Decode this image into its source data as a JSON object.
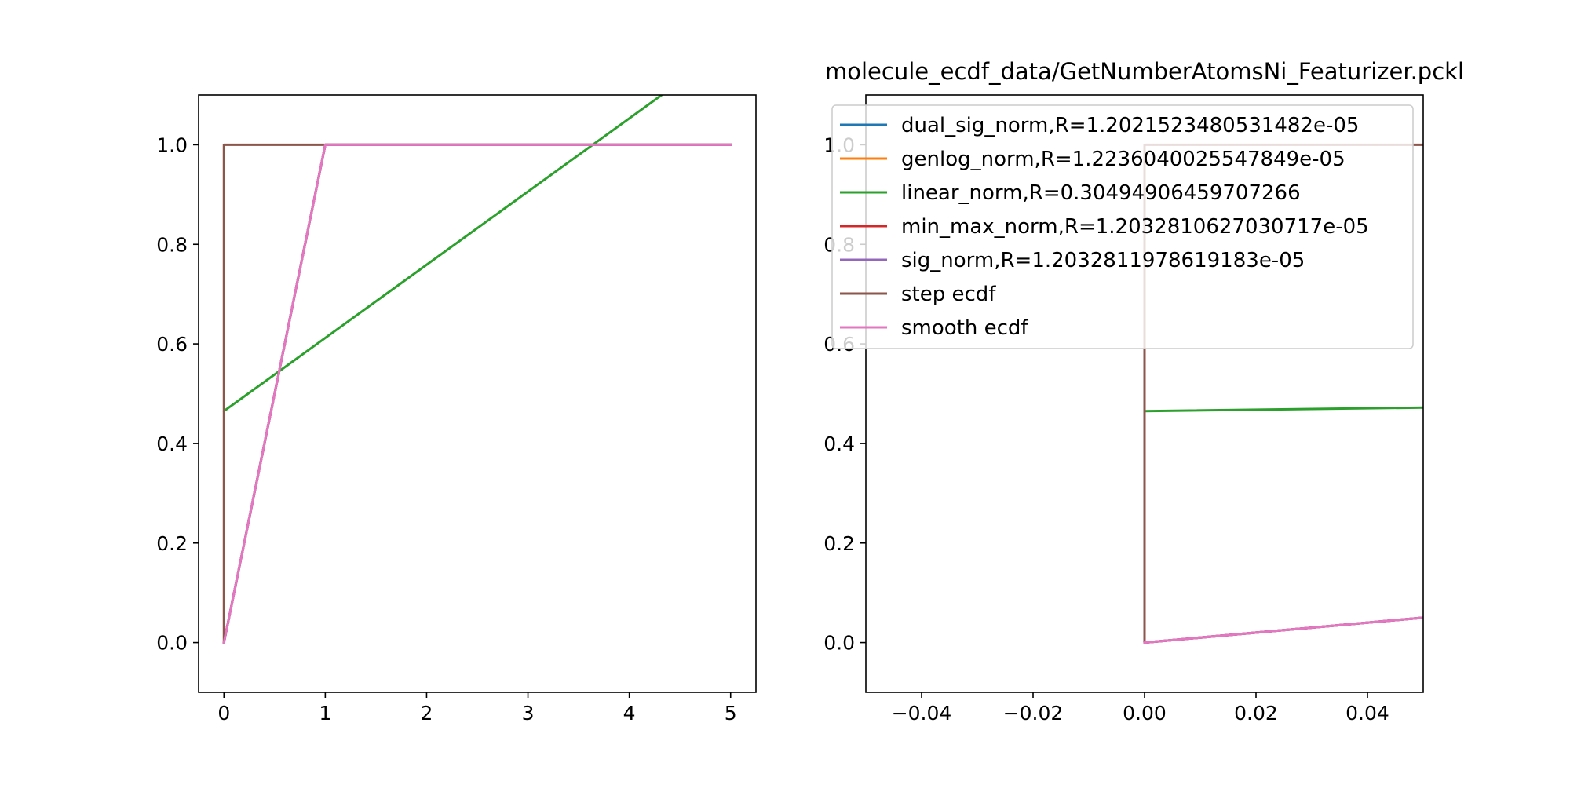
{
  "title": "molecule_ecdf_data/GetNumberAtomsNi_Featurizer.pckl",
  "legend": [
    {
      "label": "dual_sig_norm,R=1.2021523480531482e-05",
      "color": "#1f77b4"
    },
    {
      "label": "genlog_norm,R=1.2236040025547849e-05",
      "color": "#ff7f0e"
    },
    {
      "label": "linear_norm,R=0.30494906459707266",
      "color": "#2ca02c"
    },
    {
      "label": "min_max_norm,R=1.2032810627030717e-05",
      "color": "#d62728"
    },
    {
      "label": "sig_norm,R=1.2032811978619183e-05",
      "color": "#9467bd"
    },
    {
      "label": "step ecdf",
      "color": "#8c564b"
    },
    {
      "label": "smooth ecdf",
      "color": "#e377c2"
    }
  ],
  "chart_data": [
    {
      "type": "line",
      "title": "",
      "xlabel": "",
      "ylabel": "",
      "xlim": [
        -0.25,
        5.25
      ],
      "ylim": [
        -0.1,
        1.1
      ],
      "xticks": [
        0,
        1,
        2,
        3,
        4,
        5
      ],
      "xtick_labels": [
        "0",
        "1",
        "2",
        "3",
        "4",
        "5"
      ],
      "yticks": [
        0.0,
        0.2,
        0.4,
        0.6,
        0.8,
        1.0
      ],
      "ytick_labels": [
        "0.0",
        "0.2",
        "0.4",
        "0.6",
        "0.8",
        "1.0"
      ],
      "grid": false,
      "series": [
        {
          "name": "dual_sig_norm,R=1.2021523480531482e-05",
          "color": "#1f77b4",
          "x": [
            0,
            1,
            5
          ],
          "y": [
            0,
            1,
            1
          ]
        },
        {
          "name": "genlog_norm,R=1.2236040025547849e-05",
          "color": "#ff7f0e",
          "x": [
            0,
            1,
            5
          ],
          "y": [
            0,
            1,
            1
          ]
        },
        {
          "name": "linear_norm,R=0.30494906459707266",
          "color": "#2ca02c",
          "x": [
            0,
            5
          ],
          "y": [
            0.465,
            1.2
          ]
        },
        {
          "name": "min_max_norm,R=1.2032810627030717e-05",
          "color": "#d62728",
          "x": [
            0,
            1,
            5
          ],
          "y": [
            0,
            1,
            1
          ]
        },
        {
          "name": "sig_norm,R=1.2032811978619183e-05",
          "color": "#9467bd",
          "x": [
            0,
            1,
            5
          ],
          "y": [
            0,
            1,
            1
          ]
        },
        {
          "name": "step ecdf",
          "color": "#8c564b",
          "x": [
            0,
            0,
            5
          ],
          "y": [
            0,
            1,
            1
          ]
        },
        {
          "name": "smooth ecdf",
          "color": "#e377c2",
          "x": [
            0,
            1,
            5
          ],
          "y": [
            0,
            1,
            1
          ]
        }
      ]
    },
    {
      "type": "line",
      "title": "molecule_ecdf_data/GetNumberAtomsNi_Featurizer.pckl",
      "xlabel": "",
      "ylabel": "",
      "xlim": [
        -0.05,
        0.05
      ],
      "ylim": [
        -0.1,
        1.1
      ],
      "xticks": [
        -0.04,
        -0.02,
        0.0,
        0.02,
        0.04
      ],
      "xtick_labels": [
        "−0.04",
        "−0.02",
        "0.00",
        "0.02",
        "0.04"
      ],
      "yticks": [
        0.0,
        0.2,
        0.4,
        0.6,
        0.8,
        1.0
      ],
      "ytick_labels": [
        "0.0",
        "0.2",
        "0.4",
        "0.6",
        "0.8",
        "1.0"
      ],
      "grid": false,
      "legend_position": "upper-right",
      "series": [
        {
          "name": "dual_sig_norm,R=1.2021523480531482e-05",
          "color": "#1f77b4",
          "x": [
            0,
            0.05
          ],
          "y": [
            0,
            0.05
          ]
        },
        {
          "name": "genlog_norm,R=1.2236040025547849e-05",
          "color": "#ff7f0e",
          "x": [
            0,
            0.05
          ],
          "y": [
            0,
            0.05
          ]
        },
        {
          "name": "linear_norm,R=0.30494906459707266",
          "color": "#2ca02c",
          "x": [
            0,
            0.05
          ],
          "y": [
            0.465,
            0.472
          ]
        },
        {
          "name": "min_max_norm,R=1.2032810627030717e-05",
          "color": "#d62728",
          "x": [
            0,
            0.05
          ],
          "y": [
            0,
            0.05
          ]
        },
        {
          "name": "sig_norm,R=1.2032811978619183e-05",
          "color": "#9467bd",
          "x": [
            0,
            0.05
          ],
          "y": [
            0,
            0.05
          ]
        },
        {
          "name": "step ecdf",
          "color": "#8c564b",
          "x": [
            0,
            0,
            0.05
          ],
          "y": [
            0,
            1,
            1
          ]
        },
        {
          "name": "smooth ecdf",
          "color": "#e377c2",
          "x": [
            0,
            0.05
          ],
          "y": [
            0,
            0.05
          ]
        }
      ]
    }
  ]
}
